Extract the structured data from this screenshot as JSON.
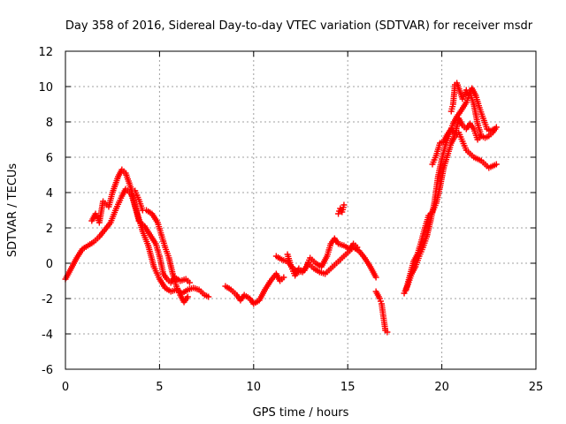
{
  "chart_data": {
    "type": "scatter",
    "title": "Day 358 of 2016, Sidereal Day-to-day VTEC variation (SDTVAR) for receiver msdr",
    "xlabel": "GPS time / hours",
    "ylabel": "SDTVAR / TECUs",
    "xlim": [
      0,
      25
    ],
    "ylim": [
      -6,
      12
    ],
    "xticks": [
      0,
      5,
      10,
      15,
      20,
      25
    ],
    "yticks": [
      -6,
      -4,
      -2,
      0,
      2,
      4,
      6,
      8,
      10,
      12
    ],
    "grid": true,
    "marker": "plus",
    "color": "#ff0000",
    "series": [
      {
        "name": "SDTVAR",
        "segments": [
          [
            [
              0.0,
              -0.9
            ],
            [
              0.3,
              -0.3
            ],
            [
              0.6,
              0.3
            ],
            [
              0.9,
              0.8
            ],
            [
              1.2,
              1.0
            ],
            [
              1.5,
              1.2
            ],
            [
              1.8,
              1.5
            ],
            [
              2.1,
              1.9
            ],
            [
              2.4,
              2.3
            ],
            [
              2.7,
              3.1
            ],
            [
              3.0,
              3.8
            ],
            [
              3.2,
              4.2
            ],
            [
              3.5,
              3.9
            ],
            [
              3.8,
              2.9
            ],
            [
              4.1,
              1.8
            ],
            [
              4.4,
              1.0
            ],
            [
              4.7,
              -0.2
            ],
            [
              5.0,
              -0.9
            ],
            [
              5.3,
              -1.4
            ],
            [
              5.6,
              -1.6
            ],
            [
              5.9,
              -1.5
            ],
            [
              6.2,
              -1.7
            ],
            [
              6.5,
              -1.5
            ],
            [
              6.8,
              -1.4
            ],
            [
              7.1,
              -1.5
            ],
            [
              7.4,
              -1.8
            ],
            [
              7.6,
              -1.9
            ]
          ],
          [
            [
              1.4,
              2.4
            ],
            [
              1.6,
              2.8
            ],
            [
              1.8,
              2.3
            ],
            [
              2.0,
              3.5
            ],
            [
              2.3,
              3.2
            ],
            [
              2.5,
              4.0
            ],
            [
              2.8,
              4.9
            ],
            [
              3.0,
              5.3
            ],
            [
              3.2,
              5.1
            ],
            [
              3.5,
              4.2
            ],
            [
              3.7,
              3.2
            ],
            [
              3.9,
              2.4
            ],
            [
              4.2,
              2.1
            ],
            [
              4.5,
              1.6
            ],
            [
              4.8,
              1.1
            ],
            [
              5.0,
              0.4
            ],
            [
              5.2,
              -0.6
            ],
            [
              5.4,
              -0.9
            ],
            [
              5.6,
              -1.1
            ],
            [
              5.8,
              -0.8
            ],
            [
              6.1,
              -1.0
            ],
            [
              6.4,
              -0.9
            ],
            [
              6.6,
              -1.1
            ]
          ],
          [
            [
              3.7,
              4.1
            ],
            [
              3.9,
              3.6
            ],
            [
              4.1,
              3.0
            ],
            [
              4.3,
              3.0
            ],
            [
              4.6,
              2.8
            ],
            [
              4.9,
              2.3
            ],
            [
              5.1,
              1.6
            ],
            [
              5.3,
              0.9
            ],
            [
              5.5,
              0.3
            ],
            [
              5.7,
              -0.6
            ],
            [
              5.9,
              -1.3
            ],
            [
              6.1,
              -1.8
            ],
            [
              6.3,
              -2.2
            ],
            [
              6.5,
              -1.9
            ]
          ],
          [
            [
              8.5,
              -1.3
            ],
            [
              8.8,
              -1.5
            ],
            [
              9.1,
              -1.8
            ],
            [
              9.3,
              -2.1
            ],
            [
              9.5,
              -1.8
            ],
            [
              9.8,
              -2.0
            ],
            [
              10.0,
              -2.3
            ],
            [
              10.3,
              -2.1
            ],
            [
              10.6,
              -1.5
            ],
            [
              10.9,
              -1.0
            ],
            [
              11.2,
              -0.6
            ],
            [
              11.4,
              -1.0
            ],
            [
              11.6,
              -0.8
            ]
          ],
          [
            [
              11.2,
              0.4
            ],
            [
              11.5,
              0.2
            ],
            [
              11.8,
              0.1
            ],
            [
              12.1,
              -0.3
            ],
            [
              12.4,
              -0.5
            ],
            [
              12.7,
              -0.4
            ],
            [
              12.9,
              0.0
            ],
            [
              13.2,
              -0.3
            ],
            [
              13.5,
              -0.5
            ],
            [
              13.8,
              -0.6
            ],
            [
              14.1,
              -0.3
            ],
            [
              14.4,
              0.0
            ],
            [
              14.7,
              0.3
            ],
            [
              15.0,
              0.6
            ],
            [
              15.3,
              0.9
            ],
            [
              15.6,
              0.7
            ],
            [
              15.9,
              0.3
            ],
            [
              16.2,
              -0.2
            ],
            [
              16.5,
              -0.8
            ]
          ],
          [
            [
              11.8,
              0.5
            ],
            [
              12.0,
              -0.2
            ],
            [
              12.2,
              -0.7
            ],
            [
              12.4,
              -0.3
            ],
            [
              12.6,
              -0.5
            ],
            [
              12.8,
              -0.2
            ],
            [
              13.0,
              0.3
            ],
            [
              13.3,
              0.0
            ],
            [
              13.6,
              -0.2
            ],
            [
              13.9,
              0.4
            ],
            [
              14.1,
              1.1
            ],
            [
              14.3,
              1.4
            ],
            [
              14.5,
              1.1
            ],
            [
              14.8,
              1.0
            ],
            [
              15.1,
              0.8
            ],
            [
              15.3,
              1.1
            ],
            [
              15.5,
              0.9
            ]
          ],
          [
            [
              14.5,
              2.8
            ],
            [
              14.6,
              3.1
            ],
            [
              14.7,
              2.9
            ],
            [
              14.8,
              3.3
            ]
          ],
          [
            [
              16.5,
              -1.6
            ],
            [
              16.7,
              -2.0
            ],
            [
              16.8,
              -2.3
            ],
            [
              17.0,
              -3.8
            ],
            [
              17.1,
              -3.9
            ]
          ],
          [
            [
              18.0,
              -1.7
            ],
            [
              18.2,
              -1.2
            ],
            [
              18.4,
              -0.6
            ],
            [
              18.6,
              -0.2
            ],
            [
              18.8,
              0.4
            ],
            [
              19.0,
              0.9
            ],
            [
              19.2,
              1.5
            ],
            [
              19.4,
              2.4
            ],
            [
              19.6,
              3.4
            ],
            [
              19.8,
              4.9
            ],
            [
              20.0,
              5.9
            ],
            [
              20.2,
              6.7
            ],
            [
              20.4,
              7.3
            ],
            [
              20.6,
              7.9
            ],
            [
              20.8,
              8.3
            ],
            [
              21.0,
              8.6
            ],
            [
              21.3,
              9.1
            ],
            [
              21.5,
              9.6
            ],
            [
              21.7,
              9.0
            ],
            [
              21.9,
              7.9
            ],
            [
              22.1,
              7.2
            ]
          ],
          [
            [
              18.1,
              -1.5
            ],
            [
              18.3,
              -0.7
            ],
            [
              18.5,
              0.1
            ],
            [
              18.7,
              0.5
            ],
            [
              18.9,
              1.2
            ],
            [
              19.1,
              2.0
            ],
            [
              19.3,
              2.7
            ],
            [
              19.5,
              2.9
            ],
            [
              19.7,
              3.4
            ],
            [
              19.9,
              4.3
            ],
            [
              20.1,
              5.4
            ],
            [
              20.3,
              6.1
            ],
            [
              20.5,
              6.8
            ],
            [
              20.7,
              7.2
            ],
            [
              20.9,
              7.4
            ],
            [
              21.1,
              6.9
            ],
            [
              21.3,
              6.4
            ],
            [
              21.5,
              6.2
            ],
            [
              21.7,
              6.0
            ],
            [
              21.9,
              5.9
            ],
            [
              22.1,
              5.8
            ],
            [
              22.3,
              5.6
            ],
            [
              22.5,
              5.4
            ],
            [
              22.7,
              5.5
            ],
            [
              22.9,
              5.6
            ]
          ],
          [
            [
              19.5,
              5.6
            ],
            [
              19.7,
              6.1
            ],
            [
              19.9,
              6.8
            ],
            [
              20.1,
              6.9
            ],
            [
              20.3,
              7.3
            ],
            [
              20.5,
              7.6
            ],
            [
              20.7,
              7.3
            ],
            [
              20.9,
              8.2
            ],
            [
              21.1,
              7.8
            ],
            [
              21.3,
              7.6
            ],
            [
              21.5,
              7.9
            ],
            [
              21.7,
              7.6
            ],
            [
              21.9,
              7.0
            ],
            [
              22.1,
              7.2
            ],
            [
              22.3,
              7.1
            ],
            [
              22.5,
              7.2
            ],
            [
              22.7,
              7.4
            ],
            [
              22.9,
              7.7
            ]
          ],
          [
            [
              20.5,
              8.6
            ],
            [
              20.6,
              9.0
            ],
            [
              20.7,
              10.1
            ],
            [
              20.8,
              10.2
            ],
            [
              21.1,
              9.3
            ],
            [
              21.3,
              9.8
            ],
            [
              21.4,
              9.5
            ],
            [
              21.6,
              9.9
            ],
            [
              21.8,
              9.5
            ],
            [
              22.0,
              8.8
            ],
            [
              22.2,
              8.2
            ],
            [
              22.4,
              7.6
            ],
            [
              22.6,
              7.5
            ],
            [
              22.8,
              7.6
            ]
          ]
        ]
      }
    ]
  }
}
